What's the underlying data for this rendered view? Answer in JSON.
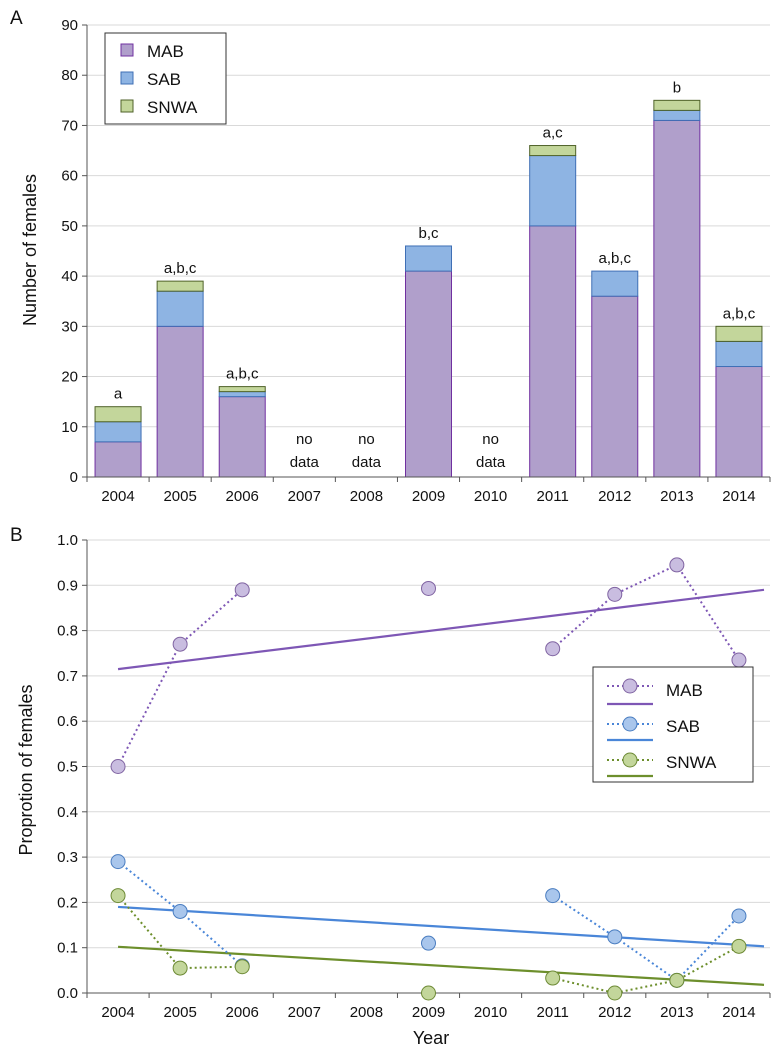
{
  "chart_data": [
    {
      "type": "bar",
      "panel_label": "A",
      "stacked": true,
      "ylabel": "Number of females",
      "ylim": [
        0,
        90
      ],
      "yticks": [
        0,
        10,
        20,
        30,
        40,
        50,
        60,
        70,
        80,
        90
      ],
      "categories": [
        "2004",
        "2005",
        "2006",
        "2007",
        "2008",
        "2009",
        "2010",
        "2011",
        "2012",
        "2013",
        "2014"
      ],
      "series": [
        {
          "name": "MAB",
          "color": "#b09fcb",
          "edge": "#7030a0",
          "values": [
            7,
            30,
            16,
            null,
            null,
            41,
            null,
            50,
            36,
            71,
            22
          ]
        },
        {
          "name": "SAB",
          "color": "#8eb4e3",
          "edge": "#3f6fb5",
          "values": [
            4,
            7,
            1,
            null,
            null,
            5,
            null,
            14,
            5,
            2,
            5
          ]
        },
        {
          "name": "SNWA",
          "color": "#c3d69b",
          "edge": "#4f6228",
          "values": [
            3,
            2,
            1,
            null,
            null,
            0,
            null,
            2,
            0,
            2,
            3
          ]
        }
      ],
      "annotations": [
        "a",
        "a,b,c",
        "a,b,c",
        "no data",
        "no data",
        "b,c",
        "no data",
        "a,c",
        "a,b,c",
        "b",
        "a,b,c"
      ],
      "legend_position": "top-left",
      "grid": true
    },
    {
      "type": "scatter",
      "panel_label": "B",
      "xlabel": "Year",
      "ylabel": "Proprotion of females",
      "ylim": [
        0,
        1.0
      ],
      "yticks": [
        "0.0",
        "0.1",
        "0.2",
        "0.3",
        "0.4",
        "0.5",
        "0.6",
        "0.7",
        "0.8",
        "0.9",
        "1.0"
      ],
      "x_categories": [
        "2004",
        "2005",
        "2006",
        "2007",
        "2008",
        "2009",
        "2010",
        "2011",
        "2012",
        "2013",
        "2014"
      ],
      "series": [
        {
          "name": "MAB",
          "color": "#7e57b5",
          "fill": "#c9bde0",
          "edge": "#8064a2",
          "values": [
            0.5,
            0.77,
            0.89,
            null,
            null,
            0.893,
            null,
            0.76,
            0.88,
            0.945,
            0.735
          ],
          "trend": [
            0.715,
            0.89
          ]
        },
        {
          "name": "SAB",
          "color": "#4a86d8",
          "fill": "#a9c6ec",
          "edge": "#4a7dc0",
          "values": [
            0.29,
            0.18,
            0.06,
            null,
            null,
            0.11,
            null,
            0.215,
            0.124,
            0.028,
            0.17
          ],
          "trend": [
            0.19,
            0.103
          ]
        },
        {
          "name": "SNWA",
          "color": "#6d8f2c",
          "fill": "#c3d69b",
          "edge": "#6d8a35",
          "values": [
            0.215,
            0.055,
            0.058,
            null,
            null,
            0.0,
            null,
            0.033,
            0.0,
            0.028,
            0.103
          ],
          "trend": [
            0.102,
            0.018
          ]
        }
      ],
      "legend_position": "right",
      "grid": true
    }
  ]
}
